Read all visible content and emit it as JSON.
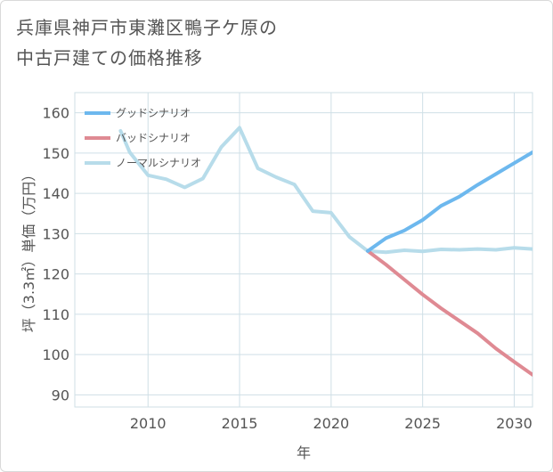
{
  "title_lines": [
    "兵庫県神戸市東灘区鴨子ケ原の",
    "中古戸建ての価格推移"
  ],
  "chart_data": {
    "type": "line",
    "title": "兵庫県神戸市東灘区鴨子ケ原の中古戸建ての価格推移",
    "xlabel": "年",
    "ylabel": "坪（3.3㎡）単価（万円）",
    "xlim": [
      2006,
      2031
    ],
    "ylim": [
      87,
      165
    ],
    "xticks": [
      2010,
      2015,
      2020,
      2025,
      2030
    ],
    "yticks": [
      90,
      100,
      110,
      120,
      130,
      140,
      150,
      160
    ],
    "grid": true,
    "legend_position": "top-left",
    "series": [
      {
        "name": "グッドシナリオ",
        "color": "#6db8ee",
        "x": [
          2022,
          2023,
          2024,
          2025,
          2026,
          2027,
          2028,
          2029,
          2030,
          2031
        ],
        "y": [
          125.7,
          128.9,
          130.8,
          133.4,
          136.9,
          139.2,
          142.1,
          144.8,
          147.5,
          150.2
        ]
      },
      {
        "name": "バッドシナリオ",
        "color": "#df8a93",
        "x": [
          2022,
          2023,
          2024,
          2025,
          2026,
          2027,
          2028,
          2029,
          2030,
          2031
        ],
        "y": [
          125.7,
          122.3,
          118.6,
          114.9,
          111.5,
          108.4,
          105.3,
          101.5,
          98.2,
          95.0
        ]
      },
      {
        "name": "ノーマルシナリオ",
        "color": "#b7dcea",
        "x": [
          2008.5,
          2009,
          2010,
          2011,
          2012,
          2013,
          2014,
          2015,
          2016,
          2017,
          2018,
          2019,
          2020,
          2021,
          2022,
          2023,
          2024,
          2025,
          2026,
          2027,
          2028,
          2029,
          2030,
          2031
        ],
        "y": [
          155.5,
          150.2,
          144.5,
          143.5,
          141.5,
          143.7,
          151.5,
          156.3,
          146.2,
          144.0,
          142.2,
          135.6,
          135.2,
          129.2,
          125.7,
          125.4,
          125.9,
          125.6,
          126.1,
          126.0,
          126.2,
          126.0,
          126.5,
          126.2
        ]
      }
    ]
  }
}
